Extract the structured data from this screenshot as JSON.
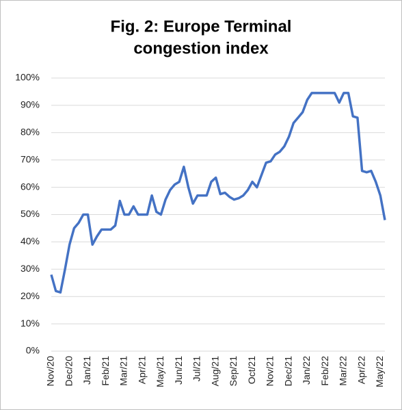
{
  "chart_data": {
    "type": "line",
    "title": "Fig. 2: Europe Terminal",
    "subtitle": "congestion index",
    "categories": [
      "Nov/20",
      null,
      null,
      null,
      "Dec/20",
      null,
      null,
      null,
      "Jan/21",
      null,
      null,
      null,
      "Feb/21",
      null,
      null,
      null,
      "Mar/21",
      null,
      null,
      null,
      "Apr/21",
      null,
      null,
      null,
      "May/21",
      null,
      null,
      null,
      "Jun/21",
      null,
      null,
      null,
      "Jul/21",
      null,
      null,
      null,
      "Aug/21",
      null,
      null,
      null,
      "Sep/21",
      null,
      null,
      null,
      "Oct/21",
      null,
      null,
      null,
      "Nov/21",
      null,
      null,
      null,
      "Dec/21",
      null,
      null,
      null,
      "Jan/22",
      null,
      null,
      null,
      "Feb/22",
      null,
      null,
      null,
      "Mar/22",
      null,
      null,
      null,
      "Apr/22",
      null,
      null,
      null,
      "May/22",
      null
    ],
    "series": [
      {
        "name": "Europe Terminal congestion index",
        "color": "#4472c4",
        "values": [
          28,
          22,
          21.5,
          30,
          39,
          45,
          47,
          50,
          50,
          39,
          42,
          44.5,
          44.5,
          44.5,
          46,
          55,
          50,
          50,
          53,
          50,
          50,
          50,
          57,
          51,
          50,
          55.5,
          59,
          61,
          62,
          67.5,
          60,
          54,
          57,
          57,
          57,
          62,
          63.5,
          57.5,
          58,
          56.5,
          55.5,
          56,
          57,
          59,
          62,
          60,
          64.5,
          69,
          69.5,
          72,
          73,
          75,
          78.5,
          83.5,
          85.5,
          87.5,
          92,
          94.5,
          94.5,
          94.5,
          94.5,
          94.5,
          94.5,
          91,
          94.5,
          94.5,
          86,
          85.5,
          66,
          65.5,
          66,
          62,
          57,
          48
        ]
      }
    ],
    "ylim": [
      0,
      100
    ],
    "yticks": [
      {
        "value": 0,
        "label": "0%"
      },
      {
        "value": 10,
        "label": "10%"
      },
      {
        "value": 20,
        "label": "20%"
      },
      {
        "value": 30,
        "label": "30%"
      },
      {
        "value": 40,
        "label": "40%"
      },
      {
        "value": 50,
        "label": "50%"
      },
      {
        "value": 60,
        "label": "60%"
      },
      {
        "value": 70,
        "label": "70%"
      },
      {
        "value": 80,
        "label": "80%"
      },
      {
        "value": 90,
        "label": "90%"
      },
      {
        "value": 100,
        "label": "100%"
      }
    ],
    "grid": true
  }
}
